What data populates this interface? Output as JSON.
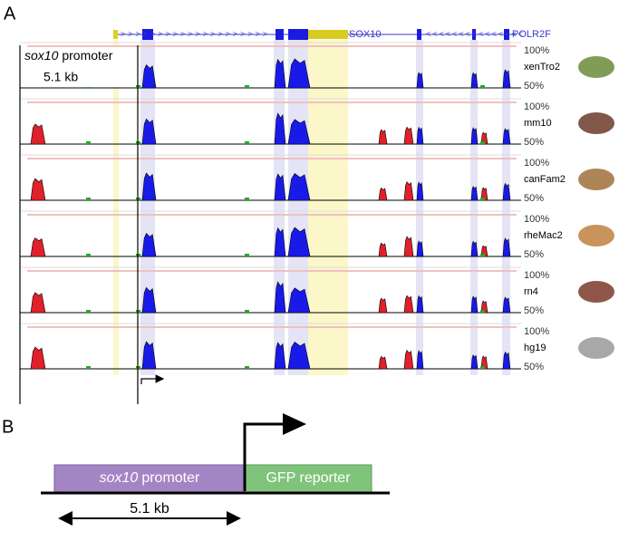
{
  "panel_a": {
    "label": "A",
    "genes": [
      "SOX10",
      "POLR2F"
    ],
    "promoter": {
      "gene": "sox10",
      "word": "promoter",
      "length": "5.1 kb"
    },
    "tracks": [
      {
        "species": "xenTro2",
        "top": "100%",
        "bottom": "50%"
      },
      {
        "species": "mm10",
        "top": "100%",
        "bottom": "50%"
      },
      {
        "species": "canFam2",
        "top": "100%",
        "bottom": "50%"
      },
      {
        "species": "rheMac2",
        "top": "100%",
        "bottom": "50%"
      },
      {
        "species": "rn4",
        "top": "100%",
        "bottom": "50%"
      },
      {
        "species": "hg19",
        "top": "100%",
        "bottom": "50%"
      }
    ]
  },
  "panel_b": {
    "label": "B",
    "promoter": {
      "gene": "sox10",
      "word": "promoter"
    },
    "reporter": "GFP reporter",
    "length": "5.1 kb"
  }
}
